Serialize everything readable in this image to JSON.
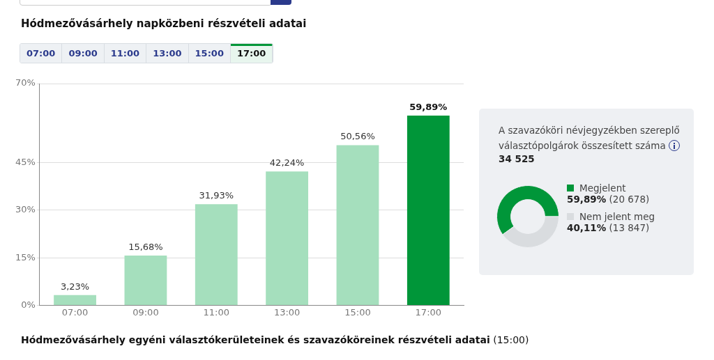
{
  "chart_data": [
    {
      "type": "bar",
      "title": "Hódmezővásárhely napközbeni részvételi adatai",
      "categories": [
        "07:00",
        "09:00",
        "11:00",
        "13:00",
        "15:00",
        "17:00"
      ],
      "values": [
        3.23,
        15.68,
        31.93,
        42.24,
        50.56,
        59.89
      ],
      "colors": [
        "#a5dfbd",
        "#a5dfbd",
        "#a5dfbd",
        "#a5dfbd",
        "#a5dfbd",
        "#009639"
      ],
      "value_labels": [
        "3,23%",
        "15,68%",
        "31,93%",
        "42,24%",
        "50,56%",
        "59,89%"
      ],
      "ylim": [
        0,
        70
      ],
      "yticks": [
        {
          "value": 0,
          "label": "0%"
        },
        {
          "value": 15,
          "label": "15%"
        },
        {
          "value": 30,
          "label": "30%"
        },
        {
          "value": 45,
          "label": "45%"
        },
        {
          "value": 70,
          "label": "70%"
        }
      ],
      "grid": "y",
      "legend": false,
      "annotations": [
        "Hódmezővásárhely egyéni választókerületeinek és szavazóköreinek részvételi adatai (15:00)"
      ]
    },
    {
      "type": "donut",
      "title": "A szavazóköri névjegyzékben szereplő választópolgárok összesített száma",
      "subtitle": "34 525",
      "categories": [
        "Megjelent",
        "Nem jelent meg"
      ],
      "values": [
        59.89,
        40.11
      ],
      "colors": [
        "#009639",
        "#d9dcdf"
      ],
      "value_labels": [
        "59,89% (20 678)",
        "40,11% (13 847)"
      ],
      "legend": "right"
    }
  ]
}
